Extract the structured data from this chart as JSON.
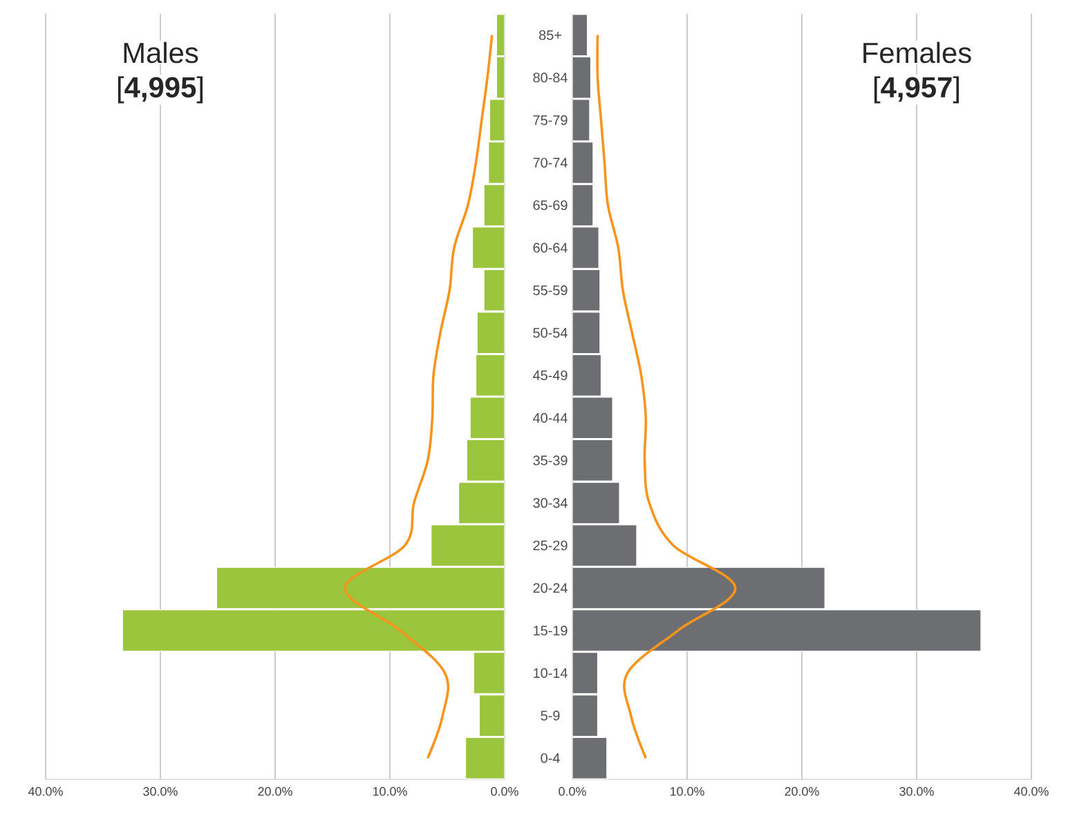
{
  "chart_data": [
    {
      "type": "bar",
      "orientation": "horizontal",
      "title": "Males",
      "subtitle": "[**4,995**]",
      "categories": [
        null,
        null,
        null,
        null,
        null,
        null,
        null,
        null,
        null,
        null,
        null,
        null,
        null,
        null,
        null,
        null,
        null,
        null
      ],
      "series": [
        {
          "color": "#9bc53d",
          "values": [
            0.7,
            0.7,
            1.3,
            1.4,
            1.8,
            2.8,
            1.8,
            2.4,
            2.5,
            3.0,
            3.3,
            4.0,
            6.4,
            25.1,
            33.3,
            2.7,
            2.2,
            3.4
          ]
        },
        {
          "type": "line",
          "color": "#f7941d",
          "values": [
            1.1,
            1.5,
            2.0,
            2.5,
            3.2,
            4.4,
            4.8,
            5.6,
            6.2,
            6.3,
            6.7,
            7.9,
            8.7,
            13.9,
            9.1,
            5.2,
            5.4,
            6.7
          ]
        }
      ],
      "xlim": [
        40,
        0
      ],
      "xticks": [
        {
          "value": 40,
          "label": "40.0%"
        },
        {
          "value": 30,
          "label": "30.0%"
        },
        {
          "value": 20,
          "label": "20.0%"
        },
        {
          "value": 10,
          "label": "10.0%"
        },
        {
          "value": 0,
          "label": "0.0%"
        }
      ],
      "grid": "x"
    },
    {
      "type": "bar",
      "orientation": "horizontal",
      "title": "Females",
      "subtitle": "[**4,957**]",
      "categories": [
        "85+",
        "80-84",
        "75-79",
        "70-74",
        "65-69",
        "60-64",
        "55-59",
        "50-54",
        "45-49",
        "40-44",
        "35-39",
        "30-34",
        "25-29",
        "20-24",
        "15-19",
        "10-14",
        "5-9",
        "0-4"
      ],
      "series": [
        {
          "color": "#6d6e71",
          "values": [
            1.3,
            1.6,
            1.5,
            1.8,
            1.8,
            2.3,
            2.4,
            2.4,
            2.5,
            3.5,
            3.5,
            4.1,
            5.6,
            22.0,
            35.6,
            2.2,
            2.2,
            3.0
          ]
        },
        {
          "type": "line",
          "color": "#f7941d",
          "values": [
            2.2,
            2.2,
            2.5,
            2.8,
            3.1,
            4.0,
            4.4,
            5.2,
            6.0,
            6.4,
            6.3,
            6.7,
            8.8,
            14.2,
            9.2,
            4.8,
            5.1,
            6.4
          ]
        }
      ],
      "xlim": [
        0,
        40
      ],
      "xticks": [
        {
          "value": 0,
          "label": "0.0%"
        },
        {
          "value": 10,
          "label": "10.0%"
        },
        {
          "value": 20,
          "label": "20.0%"
        },
        {
          "value": 30,
          "label": "30.0%"
        },
        {
          "value": 40,
          "label": "40.0%"
        }
      ],
      "grid": "x"
    }
  ]
}
